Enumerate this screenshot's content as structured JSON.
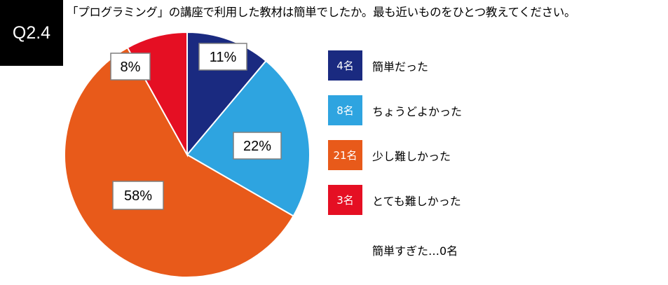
{
  "question": {
    "number": "Q2.4",
    "text": "「プログラミング」の講座で利用した教材は簡単でしたか。最も近いものをひとつ教えてください。"
  },
  "colors": {
    "badge_bg": "#000000",
    "label_border": "#7f7f7f"
  },
  "chart_data": {
    "type": "pie",
    "start_angle_deg": 0,
    "direction": "clockwise",
    "slices": [
      {
        "name": "簡単だった",
        "count_label": "4名",
        "value": 11,
        "label": "11%",
        "color": "#1a2a80"
      },
      {
        "name": "ちょうどよかった",
        "count_label": "8名",
        "value": 22,
        "label": "22%",
        "color": "#2ea4e0"
      },
      {
        "name": "少し難しかった",
        "count_label": "21名",
        "value": 58,
        "label": "58%",
        "color": "#e85a1a"
      },
      {
        "name": "とても難しかった",
        "count_label": "3名",
        "value": 8,
        "label": "8%",
        "color": "#e50f23"
      }
    ],
    "note": "簡単すぎた…0名"
  }
}
